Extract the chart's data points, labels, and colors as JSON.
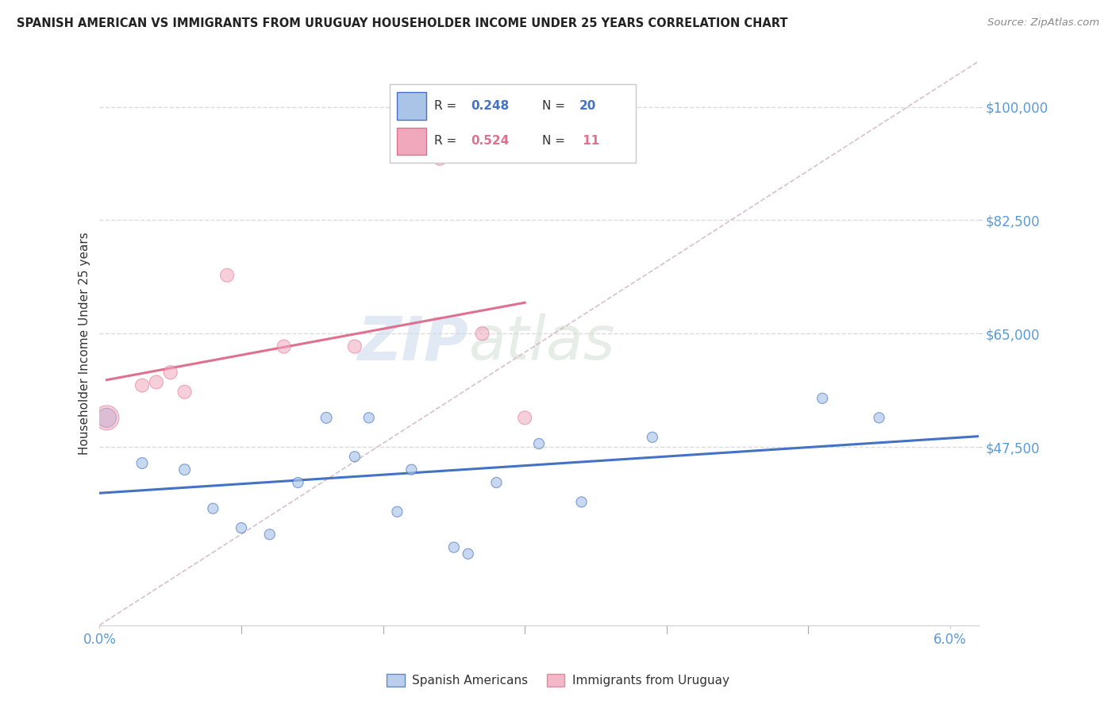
{
  "title": "SPANISH AMERICAN VS IMMIGRANTS FROM URUGUAY HOUSEHOLDER INCOME UNDER 25 YEARS CORRELATION CHART",
  "source": "Source: ZipAtlas.com",
  "ylabel": "Householder Income Under 25 years",
  "xlim": [
    0.0,
    0.062
  ],
  "ylim": [
    20000,
    107000
  ],
  "yticks": [
    47500,
    65000,
    82500,
    100000
  ],
  "ytick_labels": [
    "$47,500",
    "$65,000",
    "$82,500",
    "$100,000"
  ],
  "xtick_positions": [
    0.0,
    0.06
  ],
  "xtick_labels": [
    "0.0%",
    "6.0%"
  ],
  "blue_R": 0.248,
  "blue_N": 20,
  "pink_R": 0.524,
  "pink_N": 11,
  "legend_label_blue": "Spanish Americans",
  "legend_label_pink": "Immigrants from Uruguay",
  "blue_scatter_x": [
    0.0005,
    0.003,
    0.006,
    0.008,
    0.01,
    0.012,
    0.014,
    0.016,
    0.018,
    0.019,
    0.021,
    0.022,
    0.025,
    0.026,
    0.028,
    0.031,
    0.034,
    0.039,
    0.051,
    0.055
  ],
  "blue_scatter_y": [
    52000,
    45000,
    44000,
    38000,
    35000,
    34000,
    42000,
    52000,
    46000,
    52000,
    37500,
    44000,
    32000,
    31000,
    42000,
    48000,
    39000,
    49000,
    55000,
    52000
  ],
  "blue_scatter_size": [
    300,
    100,
    100,
    90,
    90,
    90,
    90,
    100,
    90,
    90,
    90,
    90,
    90,
    90,
    90,
    90,
    90,
    90,
    90,
    90
  ],
  "pink_scatter_x": [
    0.0005,
    0.003,
    0.004,
    0.005,
    0.006,
    0.009,
    0.013,
    0.018,
    0.024,
    0.027,
    0.03
  ],
  "pink_scatter_y": [
    52000,
    57000,
    57500,
    59000,
    56000,
    74000,
    63000,
    63000,
    92000,
    65000,
    52000
  ],
  "pink_scatter_size": [
    500,
    150,
    150,
    150,
    150,
    150,
    150,
    150,
    150,
    150,
    150
  ],
  "blue_color": "#aac4e8",
  "pink_color": "#f0a8bc",
  "blue_line_color": "#4472c4",
  "pink_line_color": "#e07090",
  "diag_color": "#d0b0c0",
  "axis_color": "#5b9bd5",
  "grid_color": "#d8d8d8",
  "watermark_color": "#ddeeff",
  "background_color": "#ffffff"
}
